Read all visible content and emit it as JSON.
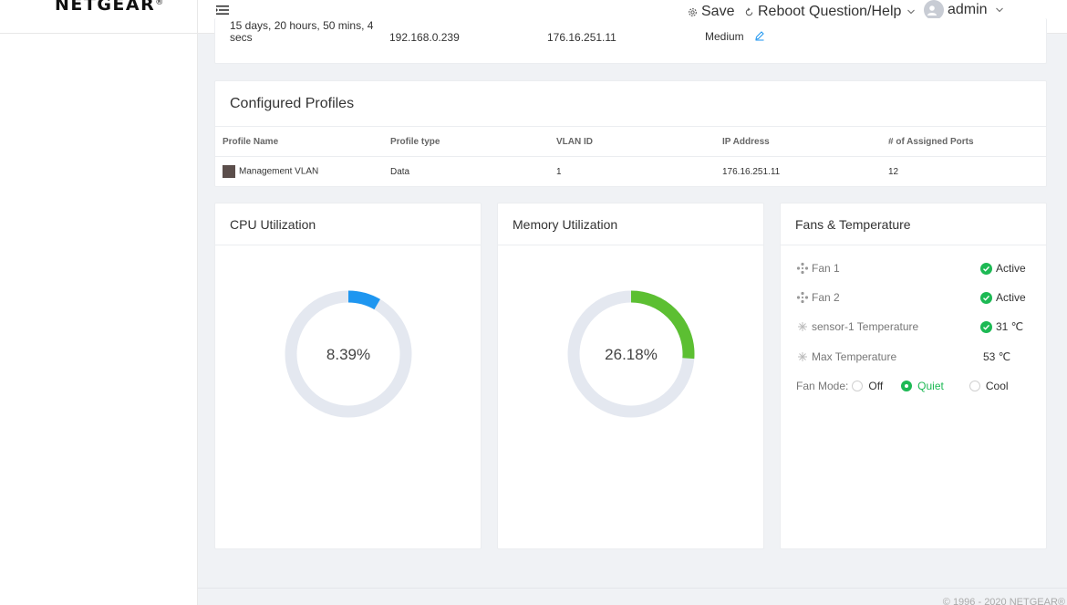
{
  "brand": {
    "logo_text": "NETGEAR",
    "logo_mark": "®"
  },
  "header": {
    "save_label": "Save",
    "reboot_label": "Reboot",
    "help_label": "Question/Help",
    "user_label": "admin",
    "icons": [
      "menu-icon",
      "gear-icon",
      "refresh-icon",
      "chevron-down-icon",
      "user-icon"
    ]
  },
  "summary": {
    "uptime": "15 days, 20 hours, 50 mins, 4 secs",
    "ip_1": "192.168.0.239",
    "ip_2": "176.16.251.11",
    "level": "Medium",
    "edit_icon": "edit-icon"
  },
  "profiles": {
    "title": "Configured Profiles",
    "columns": [
      "Profile Name",
      "Profile type",
      "VLAN ID",
      "IP Address",
      "# of Assigned Ports"
    ],
    "rows": [
      {
        "name": "Management VLAN",
        "type": "Data",
        "vlan": "1",
        "ip": "176.16.251.11",
        "ports": "12",
        "swatch_color": "#5b4e4b"
      }
    ]
  },
  "cpu": {
    "title": "CPU Utilization",
    "value_label": "8.39%",
    "value": 8.39,
    "color": "#1e96f0"
  },
  "memory": {
    "title": "Memory Utilization",
    "value_label": "26.18%",
    "value": 26.18,
    "color": "#5cbf32"
  },
  "gauge_track_color": "#e4e8f0",
  "fans": {
    "title": "Fans & Temperature",
    "rows": [
      {
        "label": "Fan 1",
        "value": "Active",
        "icon": "fan-icon",
        "ok": true
      },
      {
        "label": "Fan 2",
        "value": "Active",
        "icon": "fan-icon",
        "ok": true
      },
      {
        "label": "sensor-1 Temperature",
        "value": "31 ℃",
        "icon": "temperature-icon",
        "ok": true
      },
      {
        "label": "Max Temperature",
        "value": "53 ℃",
        "icon": "temperature-icon",
        "ok": false
      }
    ],
    "mode_label": "Fan Mode:",
    "mode_options": [
      "Off",
      "Quiet",
      "Cool"
    ],
    "mode_selected": "Quiet",
    "accent": "#1db954"
  },
  "footer": {
    "copyright": "© 1996 - 2020 NETGEAR®"
  }
}
